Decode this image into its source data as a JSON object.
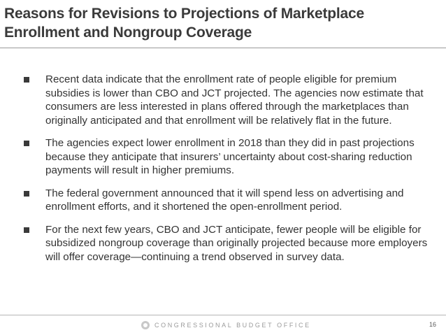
{
  "slide": {
    "title": "Reasons for Revisions to Projections of Marketplace Enrollment and Nongroup Coverage",
    "bullets": [
      "Recent data indicate that the enrollment rate of people eligible for premium subsidies is lower than CBO and JCT projected. The agencies now estimate that consumers are less interested in plans offered through the marketplaces than originally anticipated and that enrollment will be relatively flat in the future.",
      "The agencies expect lower enrollment in 2018 than they did in past projections because they anticipate that insurers’ uncertainty about cost-sharing reduction payments will result in higher premiums.",
      "The federal government announced that it will spend less on advertising and enrollment efforts, and it shortened the open-enrollment period.",
      "For the next few years, CBO and JCT anticipate, fewer people will be eligible for subsidized nongroup coverage than originally projected because more employers will offer coverage—continuing a trend observed in survey data."
    ]
  },
  "footer": {
    "organization": "CONGRESSIONAL BUDGET OFFICE",
    "page_number": "16",
    "logo_icon": "cbo-seal-icon"
  }
}
